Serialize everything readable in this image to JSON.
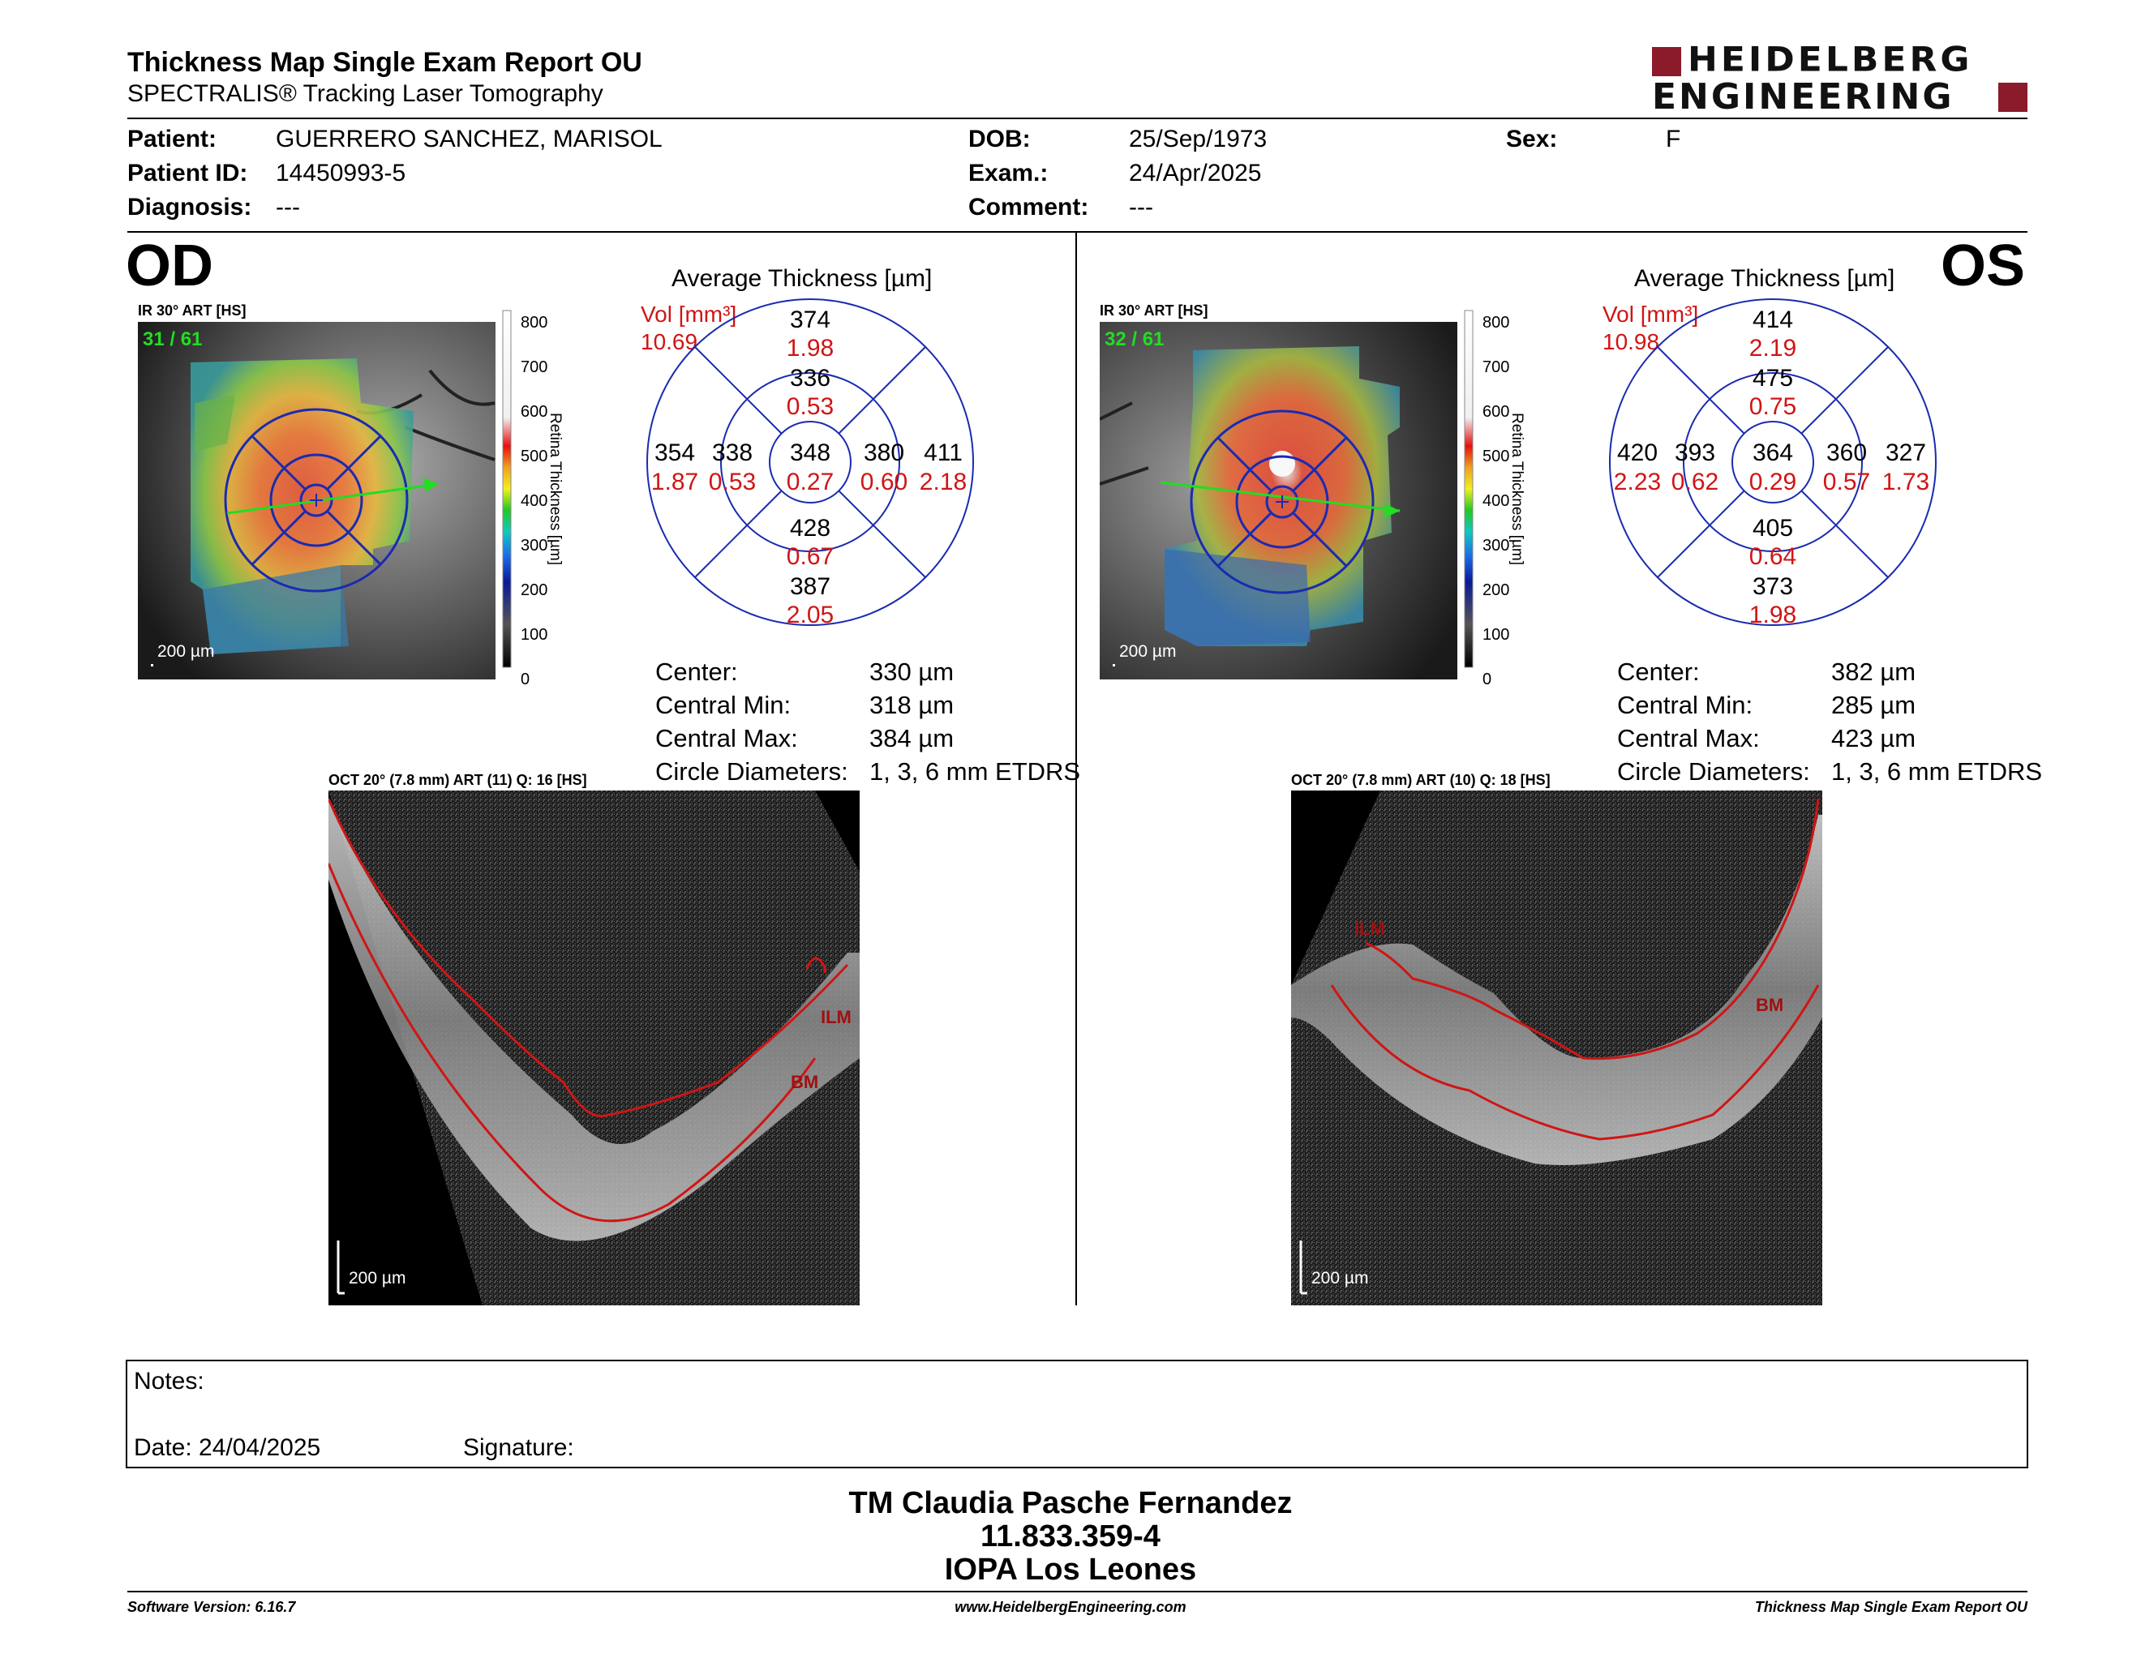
{
  "header": {
    "title": "Thickness Map Single Exam Report OU",
    "subtitle": "SPECTRALIS® Tracking Laser Tomography",
    "logo_line1": "HEIDELBERG",
    "logo_line2": "ENGINEERING"
  },
  "patient": {
    "patient_label": "Patient:",
    "patient_value": "GUERRERO SANCHEZ, MARISOL",
    "id_label": "Patient ID:",
    "id_value": "14450993-5",
    "diagnosis_label": "Diagnosis:",
    "diagnosis_value": "---",
    "dob_label": "DOB:",
    "dob_value": "25/Sep/1973",
    "exam_label": "Exam.:",
    "exam_value": "24/Apr/2025",
    "comment_label": "Comment:",
    "comment_value": "---",
    "sex_label": "Sex:",
    "sex_value": "F"
  },
  "od": {
    "eye": "OD",
    "ir_label": "IR 30° ART [HS]",
    "frame": "31 / 61",
    "scale_bar": "200 µm",
    "colorbar_ticks": [
      "800",
      "700",
      "600",
      "500",
      "400",
      "300",
      "200",
      "100",
      "0"
    ],
    "colorbar_title": "Retina Thickness [µm]",
    "avg_title": "Average Thickness [µm]",
    "vol_label": "Vol [mm³]",
    "vol_value": "10.69",
    "sectors": {
      "center": {
        "t": "348",
        "v": "0.27"
      },
      "inner_top": {
        "t": "336",
        "v": "0.53"
      },
      "inner_bottom": {
        "t": "428",
        "v": "0.67"
      },
      "inner_left": {
        "t": "338",
        "v": "0.53"
      },
      "inner_right": {
        "t": "380",
        "v": "0.60"
      },
      "outer_top": {
        "t": "374",
        "v": "1.98"
      },
      "outer_bottom": {
        "t": "387",
        "v": "2.05"
      },
      "outer_left": {
        "t": "354",
        "v": "1.87"
      },
      "outer_right": {
        "t": "411",
        "v": "2.18"
      }
    },
    "stats": [
      {
        "label": "Center:",
        "value": "330 µm"
      },
      {
        "label": "Central Min:",
        "value": "318 µm"
      },
      {
        "label": "Central Max:",
        "value": "384 µm"
      },
      {
        "label": "Circle Diameters:",
        "value": "1, 3, 6 mm ETDRS"
      }
    ],
    "oct_label": "OCT 20° (7.8 mm) ART (11) Q: 16 [HS]",
    "oct_scale": "200 µm",
    "oct_ilm": "ILM",
    "oct_bm": "BM"
  },
  "os": {
    "eye": "OS",
    "ir_label": "IR 30° ART [HS]",
    "frame": "32 / 61",
    "scale_bar": "200 µm",
    "colorbar_ticks": [
      "800",
      "700",
      "600",
      "500",
      "400",
      "300",
      "200",
      "100",
      "0"
    ],
    "colorbar_title": "Retina Thickness [µm]",
    "avg_title": "Average Thickness [µm]",
    "vol_label": "Vol [mm³]",
    "vol_value": "10.98",
    "sectors": {
      "center": {
        "t": "364",
        "v": "0.29"
      },
      "inner_top": {
        "t": "475",
        "v": "0.75"
      },
      "inner_bottom": {
        "t": "405",
        "v": "0.64"
      },
      "inner_left": {
        "t": "393",
        "v": "0.62"
      },
      "inner_right": {
        "t": "360",
        "v": "0.57"
      },
      "outer_top": {
        "t": "414",
        "v": "2.19"
      },
      "outer_bottom": {
        "t": "373",
        "v": "1.98"
      },
      "outer_left": {
        "t": "420",
        "v": "2.23"
      },
      "outer_right": {
        "t": "327",
        "v": "1.73"
      }
    },
    "stats": [
      {
        "label": "Center:",
        "value": "382 µm"
      },
      {
        "label": "Central Min:",
        "value": "285 µm"
      },
      {
        "label": "Central Max:",
        "value": "423 µm"
      },
      {
        "label": "Circle Diameters:",
        "value": "1, 3, 6 mm ETDRS"
      }
    ],
    "oct_label": "OCT 20° (7.8 mm) ART (10) Q: 18 [HS]",
    "oct_scale": "200 µm",
    "oct_ilm": "ILM",
    "oct_bm": "BM"
  },
  "notes": {
    "notes_label": "Notes:",
    "date_label": "Date: 24/04/2025",
    "signature_label": "Signature:"
  },
  "signoff": {
    "name": "TM Claudia Pasche Fernandez",
    "rut": "11.833.359-4",
    "place": "IOPA Los Leones"
  },
  "footer": {
    "software": "Software Version: 6.16.7",
    "website": "www.HeidelbergEngineering.com",
    "report": "Thickness Map Single Exam Report OU"
  },
  "colors": {
    "brand_red": "#8b1a2b",
    "value_red": "#d01515",
    "grid_blue": "#1a2bb0",
    "frame_green": "#22dd22"
  }
}
